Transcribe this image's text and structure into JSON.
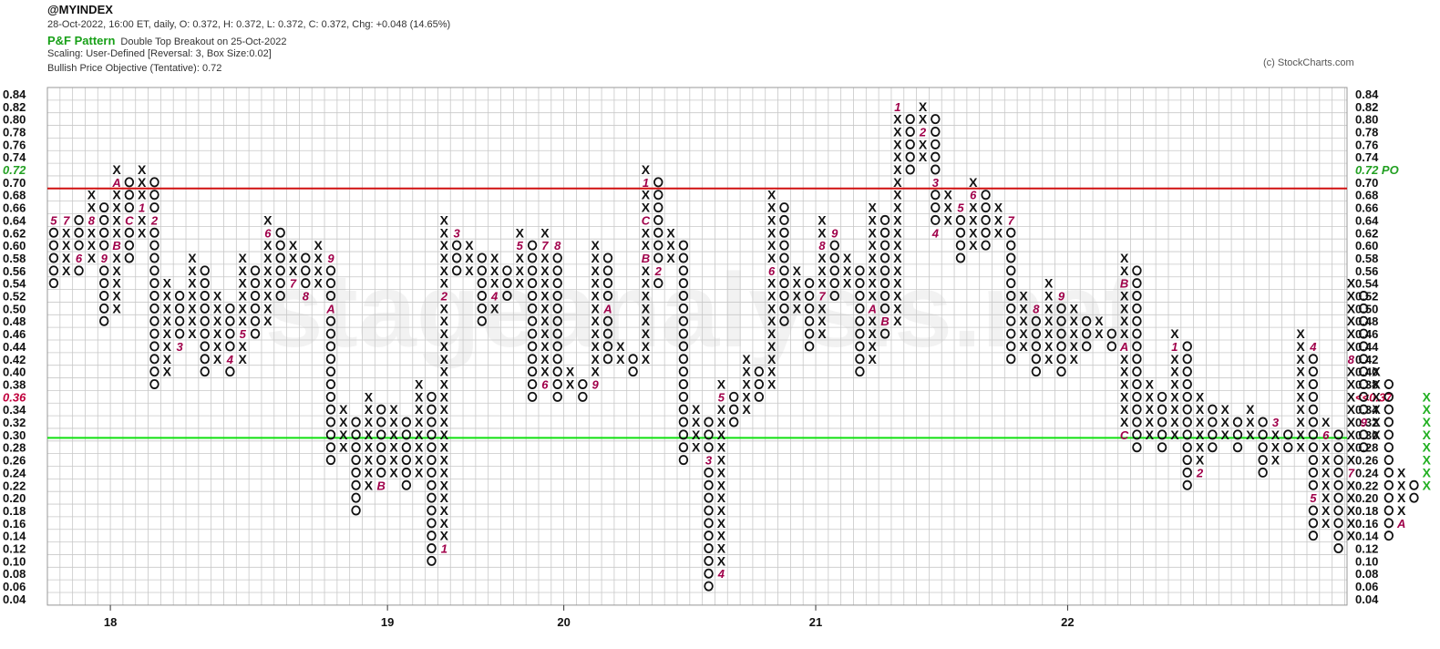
{
  "header": {
    "symbol": "@MYINDEX",
    "stats": "28-Oct-2022, 16:00 ET, daily, O: 0.372, H: 0.372, L: 0.372, C: 0.372, Chg: +0.048 (14.65%)",
    "pattern_label": "P&F Pattern",
    "pattern_text": "Double Top Breakout on 25-Oct-2022",
    "scaling": "Scaling: User-Defined [Reversal: 3, Box Size:0.02]",
    "objective": "Bullish Price Objective (Tentative): 0.72",
    "copyright": "(c) StockCharts.com"
  },
  "watermark": "stageanalysis.net",
  "colors": {
    "x_mark": "#111111",
    "o_mark": "#111111",
    "month_marker": "#a0004a",
    "last_column": "#22b022",
    "resistance_line": "#d01010",
    "support_line": "#10e010",
    "grid": "#c8c8c8",
    "objective_label": "#22a022",
    "last_price_label": "#c0003c"
  },
  "chart_data": {
    "type": "point-and-figure",
    "box_size": 0.02,
    "reversal": 3,
    "y_range": [
      0.04,
      0.84
    ],
    "y_ticks": [
      "0.84",
      "0.82",
      "0.80",
      "0.78",
      "0.76",
      "0.74",
      "0.72",
      "0.70",
      "0.68",
      "0.66",
      "0.64",
      "0.62",
      "0.60",
      "0.58",
      "0.56",
      "0.54",
      "0.52",
      "0.50",
      "0.48",
      "0.46",
      "0.44",
      "0.42",
      "0.40",
      "0.38",
      "0.36",
      "0.34",
      "0.32",
      "0.30",
      "0.28",
      "0.26",
      "0.24",
      "0.22",
      "0.20",
      "0.18",
      "0.16",
      "0.14",
      "0.12",
      "0.10",
      "0.08",
      "0.06",
      "0.04"
    ],
    "x_labels": [
      {
        "label": "18",
        "col": 5
      },
      {
        "label": "19",
        "col": 27
      },
      {
        "label": "20",
        "col": 41
      },
      {
        "label": "21",
        "col": 61
      },
      {
        "label": "22",
        "col": 81
      }
    ],
    "columns": [
      {
        "t": "O",
        "hi": 0.64,
        "lo": 0.54,
        "m": {
          "0.64": "5"
        }
      },
      {
        "t": "X",
        "hi": 0.64,
        "lo": 0.56,
        "m": {
          "0.64": "7"
        }
      },
      {
        "t": "O",
        "hi": 0.64,
        "lo": 0.56,
        "m": {
          "0.58": "6"
        }
      },
      {
        "t": "X",
        "hi": 0.68,
        "lo": 0.58,
        "m": {
          "0.64": "8"
        }
      },
      {
        "t": "O",
        "hi": 0.66,
        "lo": 0.48,
        "m": {
          "0.58": "9"
        }
      },
      {
        "t": "X",
        "hi": 0.72,
        "lo": 0.5,
        "m": {
          "0.70": "A",
          "0.60": "B"
        }
      },
      {
        "t": "O",
        "hi": 0.7,
        "lo": 0.58,
        "m": {
          "0.64": "C"
        }
      },
      {
        "t": "X",
        "hi": 0.72,
        "lo": 0.62,
        "m": {
          "0.66": "1"
        }
      },
      {
        "t": "O",
        "hi": 0.7,
        "lo": 0.38,
        "m": {
          "0.64": "2"
        }
      },
      {
        "t": "X",
        "hi": 0.54,
        "lo": 0.4,
        "m": {}
      },
      {
        "t": "O",
        "hi": 0.52,
        "lo": 0.44,
        "m": {
          "0.44": "3"
        }
      },
      {
        "t": "X",
        "hi": 0.58,
        "lo": 0.46,
        "m": {}
      },
      {
        "t": "O",
        "hi": 0.56,
        "lo": 0.4,
        "m": {}
      },
      {
        "t": "X",
        "hi": 0.52,
        "lo": 0.42,
        "m": {}
      },
      {
        "t": "O",
        "hi": 0.5,
        "lo": 0.4,
        "m": {
          "0.42": "4"
        }
      },
      {
        "t": "X",
        "hi": 0.58,
        "lo": 0.42,
        "m": {
          "0.46": "5"
        }
      },
      {
        "t": "O",
        "hi": 0.56,
        "lo": 0.46,
        "m": {}
      },
      {
        "t": "X",
        "hi": 0.64,
        "lo": 0.48,
        "m": {
          "0.62": "6"
        }
      },
      {
        "t": "O",
        "hi": 0.62,
        "lo": 0.52,
        "m": {}
      },
      {
        "t": "X",
        "hi": 0.6,
        "lo": 0.54,
        "m": {
          "0.54": "7"
        }
      },
      {
        "t": "O",
        "hi": 0.58,
        "lo": 0.52,
        "m": {
          "0.52": "8"
        }
      },
      {
        "t": "X",
        "hi": 0.6,
        "lo": 0.54,
        "m": {}
      },
      {
        "t": "O",
        "hi": 0.58,
        "lo": 0.26,
        "m": {
          "0.58": "9",
          "0.50": "A"
        }
      },
      {
        "t": "X",
        "hi": 0.34,
        "lo": 0.28,
        "m": {}
      },
      {
        "t": "O",
        "hi": 0.32,
        "lo": 0.18,
        "m": {}
      },
      {
        "t": "X",
        "hi": 0.36,
        "lo": 0.22,
        "m": {}
      },
      {
        "t": "O",
        "hi": 0.34,
        "lo": 0.22,
        "m": {
          "0.22": "B"
        }
      },
      {
        "t": "X",
        "hi": 0.34,
        "lo": 0.24,
        "m": {}
      },
      {
        "t": "O",
        "hi": 0.32,
        "lo": 0.22,
        "m": {
          "0.34": "C"
        }
      },
      {
        "t": "X",
        "hi": 0.38,
        "lo": 0.24,
        "m": {}
      },
      {
        "t": "O",
        "hi": 0.36,
        "lo": 0.1,
        "m": {}
      },
      {
        "t": "X",
        "hi": 0.64,
        "lo": 0.12,
        "m": {
          "0.12": "1",
          "0.52": "2"
        }
      },
      {
        "t": "O",
        "hi": 0.62,
        "lo": 0.56,
        "m": {
          "0.62": "3"
        }
      },
      {
        "t": "X",
        "hi": 0.6,
        "lo": 0.56,
        "m": {}
      },
      {
        "t": "O",
        "hi": 0.58,
        "lo": 0.48,
        "m": {}
      },
      {
        "t": "X",
        "hi": 0.58,
        "lo": 0.5,
        "m": {
          "0.52": "4"
        }
      },
      {
        "t": "O",
        "hi": 0.56,
        "lo": 0.52,
        "m": {}
      },
      {
        "t": "X",
        "hi": 0.62,
        "lo": 0.54,
        "m": {
          "0.60": "5"
        }
      },
      {
        "t": "O",
        "hi": 0.6,
        "lo": 0.36,
        "m": {}
      },
      {
        "t": "X",
        "hi": 0.62,
        "lo": 0.38,
        "m": {
          "0.60": "7",
          "0.38": "6"
        }
      },
      {
        "t": "O",
        "hi": 0.6,
        "lo": 0.36,
        "m": {
          "0.60": "8"
        }
      },
      {
        "t": "X",
        "hi": 0.4,
        "lo": 0.38,
        "m": {}
      },
      {
        "t": "O",
        "hi": 0.38,
        "lo": 0.36,
        "m": {}
      },
      {
        "t": "X",
        "hi": 0.6,
        "lo": 0.38,
        "m": {
          "0.38": "9"
        }
      },
      {
        "t": "O",
        "hi": 0.58,
        "lo": 0.42,
        "m": {
          "0.50": "A"
        }
      },
      {
        "t": "X",
        "hi": 0.44,
        "lo": 0.42,
        "m": {}
      },
      {
        "t": "O",
        "hi": 0.42,
        "lo": 0.4,
        "m": {}
      },
      {
        "t": "X",
        "hi": 0.72,
        "lo": 0.42,
        "m": {
          "0.70": "1",
          "0.64": "C",
          "0.58": "B"
        }
      },
      {
        "t": "O",
        "hi": 0.7,
        "lo": 0.54,
        "m": {
          "0.56": "2"
        }
      },
      {
        "t": "X",
        "hi": 0.62,
        "lo": 0.58,
        "m": {}
      },
      {
        "t": "O",
        "hi": 0.6,
        "lo": 0.26,
        "m": {}
      },
      {
        "t": "X",
        "hi": 0.34,
        "lo": 0.28,
        "m": {}
      },
      {
        "t": "O",
        "hi": 0.32,
        "lo": 0.06,
        "m": {
          "0.26": "3"
        }
      },
      {
        "t": "X",
        "hi": 0.38,
        "lo": 0.08,
        "m": {
          "0.08": "4",
          "0.36": "5"
        }
      },
      {
        "t": "O",
        "hi": 0.36,
        "lo": 0.32,
        "m": {}
      },
      {
        "t": "X",
        "hi": 0.42,
        "lo": 0.34,
        "m": {}
      },
      {
        "t": "O",
        "hi": 0.4,
        "lo": 0.36,
        "m": {}
      },
      {
        "t": "X",
        "hi": 0.68,
        "lo": 0.38,
        "m": {
          "0.56": "6"
        }
      },
      {
        "t": "O",
        "hi": 0.66,
        "lo": 0.48,
        "m": {}
      },
      {
        "t": "X",
        "hi": 0.56,
        "lo": 0.5,
        "m": {}
      },
      {
        "t": "O",
        "hi": 0.54,
        "lo": 0.44,
        "m": {}
      },
      {
        "t": "X",
        "hi": 0.64,
        "lo": 0.46,
        "m": {
          "0.60": "8",
          "0.52": "7"
        }
      },
      {
        "t": "O",
        "hi": 0.62,
        "lo": 0.52,
        "m": {
          "0.62": "9"
        }
      },
      {
        "t": "X",
        "hi": 0.58,
        "lo": 0.54,
        "m": {}
      },
      {
        "t": "O",
        "hi": 0.56,
        "lo": 0.4,
        "m": {}
      },
      {
        "t": "X",
        "hi": 0.66,
        "lo": 0.42,
        "m": {
          "0.50": "A"
        }
      },
      {
        "t": "O",
        "hi": 0.64,
        "lo": 0.46,
        "m": {
          "0.48": "B"
        }
      },
      {
        "t": "X",
        "hi": 0.82,
        "lo": 0.48,
        "m": {
          "0.82": "1"
        }
      },
      {
        "t": "O",
        "hi": 0.8,
        "lo": 0.72,
        "m": {}
      },
      {
        "t": "X",
        "hi": 0.82,
        "lo": 0.74,
        "m": {
          "0.78": "2"
        }
      },
      {
        "t": "O",
        "hi": 0.8,
        "lo": 0.62,
        "m": {
          "0.70": "3",
          "0.62": "4"
        }
      },
      {
        "t": "X",
        "hi": 0.68,
        "lo": 0.64,
        "m": {}
      },
      {
        "t": "O",
        "hi": 0.66,
        "lo": 0.58,
        "m": {
          "0.66": "5"
        }
      },
      {
        "t": "X",
        "hi": 0.7,
        "lo": 0.6,
        "m": {
          "0.68": "6"
        }
      },
      {
        "t": "O",
        "hi": 0.68,
        "lo": 0.6,
        "m": {}
      },
      {
        "t": "X",
        "hi": 0.66,
        "lo": 0.62,
        "m": {}
      },
      {
        "t": "O",
        "hi": 0.64,
        "lo": 0.42,
        "m": {
          "0.64": "7"
        }
      },
      {
        "t": "X",
        "hi": 0.52,
        "lo": 0.44,
        "m": {}
      },
      {
        "t": "O",
        "hi": 0.5,
        "lo": 0.4,
        "m": {
          "0.50": "8"
        }
      },
      {
        "t": "X",
        "hi": 0.54,
        "lo": 0.42,
        "m": {}
      },
      {
        "t": "O",
        "hi": 0.52,
        "lo": 0.4,
        "m": {
          "0.52": "9"
        }
      },
      {
        "t": "X",
        "hi": 0.5,
        "lo": 0.42,
        "m": {}
      },
      {
        "t": "O",
        "hi": 0.48,
        "lo": 0.44,
        "m": {}
      },
      {
        "t": "X",
        "hi": 0.48,
        "lo": 0.46,
        "m": {}
      },
      {
        "t": "O",
        "hi": 0.46,
        "lo": 0.44,
        "m": {}
      },
      {
        "t": "X",
        "hi": 0.58,
        "lo": 0.3,
        "m": {
          "0.54": "B",
          "0.44": "A",
          "0.30": "C"
        }
      },
      {
        "t": "O",
        "hi": 0.56,
        "lo": 0.28,
        "m": {}
      },
      {
        "t": "X",
        "hi": 0.38,
        "lo": 0.3,
        "m": {}
      },
      {
        "t": "O",
        "hi": 0.36,
        "lo": 0.28,
        "m": {}
      },
      {
        "t": "X",
        "hi": 0.46,
        "lo": 0.3,
        "m": {
          "0.44": "1"
        }
      },
      {
        "t": "O",
        "hi": 0.44,
        "lo": 0.22,
        "m": {}
      },
      {
        "t": "X",
        "hi": 0.36,
        "lo": 0.24,
        "m": {
          "0.24": "2"
        }
      },
      {
        "t": "O",
        "hi": 0.34,
        "lo": 0.28,
        "m": {}
      },
      {
        "t": "X",
        "hi": 0.34,
        "lo": 0.3,
        "m": {}
      },
      {
        "t": "O",
        "hi": 0.32,
        "lo": 0.28,
        "m": {}
      },
      {
        "t": "X",
        "hi": 0.34,
        "lo": 0.3,
        "m": {}
      },
      {
        "t": "O",
        "hi": 0.32,
        "lo": 0.24,
        "m": {}
      },
      {
        "t": "X",
        "hi": 0.32,
        "lo": 0.26,
        "m": {
          "0.32": "3"
        }
      },
      {
        "t": "O",
        "hi": 0.3,
        "lo": 0.28,
        "m": {}
      },
      {
        "t": "X",
        "hi": 0.46,
        "lo": 0.28,
        "m": {}
      },
      {
        "t": "O",
        "hi": 0.44,
        "lo": 0.14,
        "m": {
          "0.44": "4",
          "0.20": "5"
        }
      },
      {
        "t": "X",
        "hi": 0.32,
        "lo": 0.16,
        "m": {
          "0.30": "6"
        }
      },
      {
        "t": "O",
        "hi": 0.3,
        "lo": 0.12,
        "m": {}
      },
      {
        "t": "X",
        "hi": 0.54,
        "lo": 0.14,
        "m": {
          "0.42": "8",
          "0.24": "7"
        }
      },
      {
        "t": "O",
        "hi": 0.52,
        "lo": 0.28,
        "m": {
          "0.32": "9"
        }
      },
      {
        "t": "X",
        "hi": 0.4,
        "lo": 0.3,
        "m": {}
      },
      {
        "t": "O",
        "hi": 0.38,
        "lo": 0.14,
        "m": {}
      },
      {
        "t": "X",
        "hi": 0.24,
        "lo": 0.16,
        "m": {
          "0.16": "A"
        }
      },
      {
        "t": "O",
        "hi": 0.22,
        "lo": 0.2,
        "m": {}
      },
      {
        "t": "X",
        "hi": 0.36,
        "lo": 0.22,
        "m": {},
        "last": true
      }
    ],
    "lines": [
      {
        "name": "resistance",
        "y": 0.69
      },
      {
        "name": "support",
        "y": 0.295
      }
    ],
    "price_objective": {
      "value": 0.72,
      "label": "0.72",
      "tag": "PO"
    },
    "last_price": {
      "value": 0.37,
      "y_slot": 0.36,
      "label": "<<0.37",
      "left_label": "0.36"
    }
  }
}
